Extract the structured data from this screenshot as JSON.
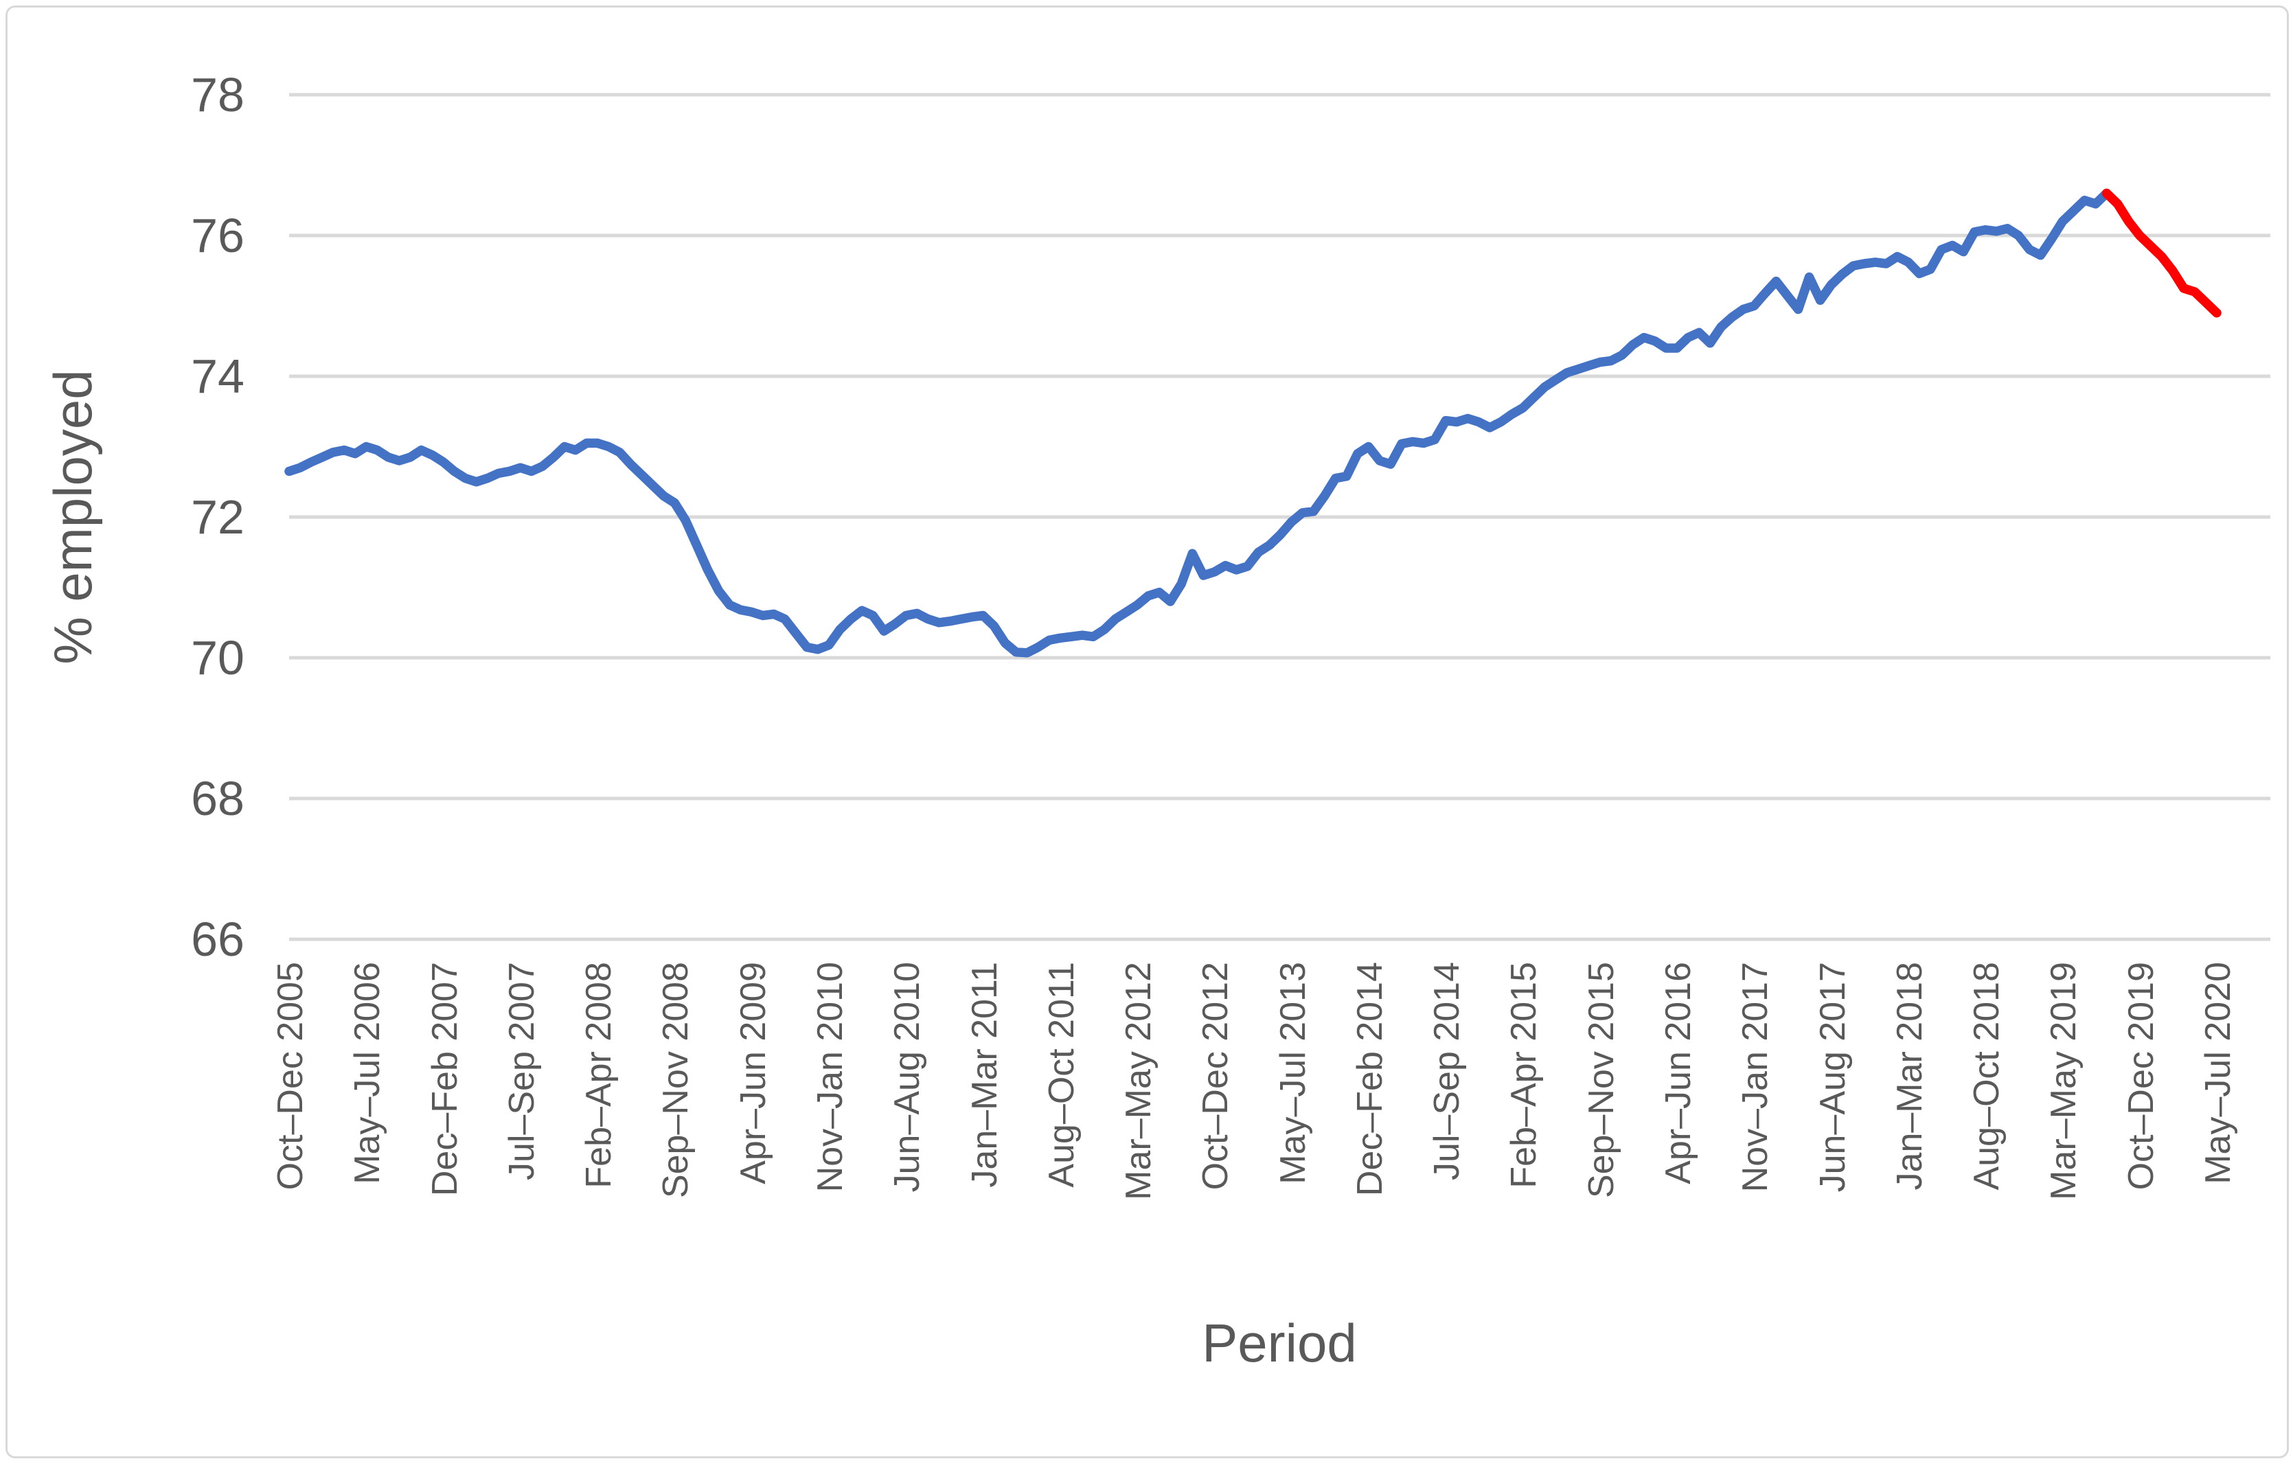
{
  "chart_data": {
    "type": "line",
    "title": "",
    "xlabel": "Period",
    "ylabel": "% employed",
    "ylim": [
      66,
      78
    ],
    "yticks": [
      78,
      76,
      74,
      72,
      70,
      68,
      66
    ],
    "grid": true,
    "legend": "none",
    "points_per_label": 7,
    "x_tick_labels": [
      "Oct–Dec 2005",
      "May–Jul 2006",
      "Dec–Feb 2007",
      "Jul–Sep 2007",
      "Feb–Apr 2008",
      "Sep–Nov 2008",
      "Apr–Jun 2009",
      "Nov–Jan 2010",
      "Jun–Aug 2010",
      "Jan–Mar 2011",
      "Aug–Oct 2011",
      "Mar–May 2012",
      "Oct–Dec 2012",
      "May–Jul 2013",
      "Dec–Feb 2014",
      "Jul–Sep 2014",
      "Feb–Apr 2015",
      "Sep–Nov 2015",
      "Apr–Jun 2016",
      "Nov–Jan 2017",
      "Jun–Aug 2017",
      "Jan–Mar 2018",
      "Aug–Oct 2018",
      "Mar–May 2019",
      "Oct–Dec 2019",
      "May–Jul 2020"
    ],
    "series": [
      {
        "name": "employment-rate-historic",
        "color": "#4472C4",
        "start_index": 0,
        "values": [
          72.65,
          72.7,
          72.78,
          72.85,
          72.92,
          72.95,
          72.9,
          73.0,
          72.95,
          72.85,
          72.8,
          72.85,
          72.95,
          72.88,
          72.78,
          72.65,
          72.55,
          72.5,
          72.55,
          72.62,
          72.65,
          72.7,
          72.65,
          72.72,
          72.85,
          73.0,
          72.95,
          73.05,
          73.05,
          73.0,
          72.92,
          72.75,
          72.6,
          72.45,
          72.3,
          72.2,
          71.95,
          71.6,
          71.25,
          70.95,
          70.75,
          70.68,
          70.65,
          70.6,
          70.62,
          70.55,
          70.35,
          70.15,
          70.12,
          70.18,
          70.4,
          70.55,
          70.67,
          70.6,
          70.38,
          70.48,
          70.6,
          70.63,
          70.55,
          70.5,
          70.52,
          70.55,
          70.58,
          70.6,
          70.45,
          70.21,
          70.08,
          70.07,
          70.15,
          70.25,
          70.28,
          70.3,
          70.32,
          70.3,
          70.4,
          70.55,
          70.65,
          70.75,
          70.88,
          70.93,
          70.8,
          71.05,
          71.48,
          71.17,
          71.22,
          71.31,
          71.25,
          71.3,
          71.5,
          71.6,
          71.75,
          71.93,
          72.06,
          72.08,
          72.3,
          72.55,
          72.58,
          72.9,
          73.0,
          72.8,
          72.75,
          73.04,
          73.07,
          73.05,
          73.1,
          73.37,
          73.35,
          73.4,
          73.35,
          73.27,
          73.35,
          73.46,
          73.55,
          73.7,
          73.85,
          73.95,
          74.05,
          74.1,
          74.15,
          74.2,
          74.22,
          74.3,
          74.45,
          74.55,
          74.5,
          74.4,
          74.4,
          74.55,
          74.62,
          74.47,
          74.7,
          74.84,
          74.95,
          75.0,
          75.18,
          75.35,
          75.15,
          74.95,
          75.41,
          75.08,
          75.3,
          75.45,
          75.57,
          75.6,
          75.62,
          75.6,
          75.7,
          75.62,
          75.46,
          75.52,
          75.8,
          75.86,
          75.77,
          76.05,
          76.08,
          76.06,
          76.1,
          76.0,
          75.8,
          75.72,
          75.95,
          76.2,
          76.35,
          76.5,
          76.45,
          76.6
        ]
      },
      {
        "name": "employment-rate-latest-decline",
        "color": "#FF0000",
        "start_index": 165,
        "values": [
          76.6,
          76.45,
          76.2,
          76.0,
          75.85,
          75.7,
          75.5,
          75.25,
          75.2,
          75.05,
          74.9
        ]
      }
    ],
    "gridline_color": "#D9D9D9",
    "text_color": "#595959"
  }
}
